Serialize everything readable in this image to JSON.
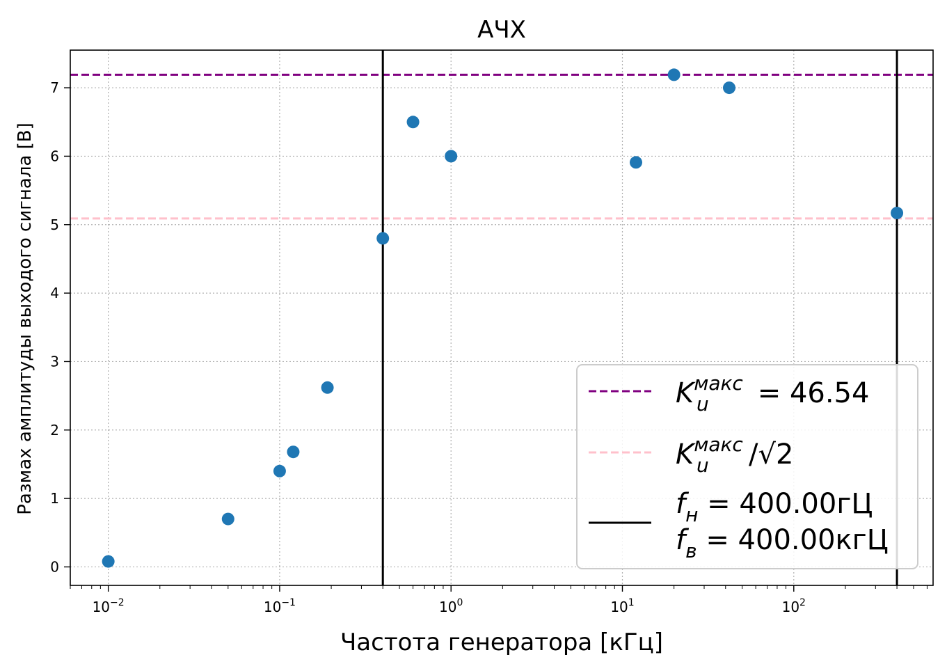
{
  "chart_data": {
    "type": "scatter",
    "title": "АЧХ",
    "xlabel": "Частота генератора [кГц]",
    "ylabel": "Размах амплитуды выходого сигнала [В]",
    "xscale": "log",
    "xlim": [
      0.006,
      650
    ],
    "ylim": [
      -0.27,
      7.55
    ],
    "grid": true,
    "x_ticks": [
      {
        "value": 0.01,
        "base": "10",
        "exp": "−2"
      },
      {
        "value": 0.1,
        "base": "10",
        "exp": "−1"
      },
      {
        "value": 1,
        "base": "10",
        "exp": "0"
      },
      {
        "value": 10,
        "base": "10",
        "exp": "1"
      },
      {
        "value": 100,
        "base": "10",
        "exp": "2"
      }
    ],
    "y_ticks": [
      0,
      1,
      2,
      3,
      4,
      5,
      6,
      7
    ],
    "series": [
      {
        "color": "#1f77b4",
        "x": [
          0.01,
          0.05,
          0.1,
          0.12,
          0.19,
          0.4,
          0.6,
          1.0,
          12,
          20,
          42,
          400
        ],
        "y": [
          0.08,
          0.7,
          1.4,
          1.68,
          2.62,
          4.8,
          6.5,
          6.0,
          5.91,
          7.19,
          7.0,
          5.17
        ]
      }
    ],
    "hlines": [
      {
        "y": 7.19,
        "color": "#800080",
        "style": "dashed"
      },
      {
        "y": 5.09,
        "color": "#ffc0cb",
        "style": "dashed"
      }
    ],
    "vlines": [
      {
        "x": 0.4,
        "color": "#000000"
      },
      {
        "x": 400,
        "color": "#000000"
      }
    ],
    "legend": {
      "location": "bottom-right",
      "entries": [
        {
          "kind": "dashed",
          "color": "#800080",
          "symbol": "K",
          "sub": "u",
          "sup": "макс",
          "tail": " = 46.54"
        },
        {
          "kind": "dashed",
          "color": "#ffc0cb",
          "symbol": "K",
          "sub": "u",
          "sup": "макс",
          "tail": "/√2"
        },
        {
          "kind": "solid",
          "color": "#000000",
          "lines": [
            {
              "symbol": "f",
              "sub": "н",
              "tail": " = 400.00гЦ"
            },
            {
              "symbol": "f",
              "sub": "в",
              "tail": " = 400.00кгЦ"
            }
          ]
        }
      ]
    }
  }
}
